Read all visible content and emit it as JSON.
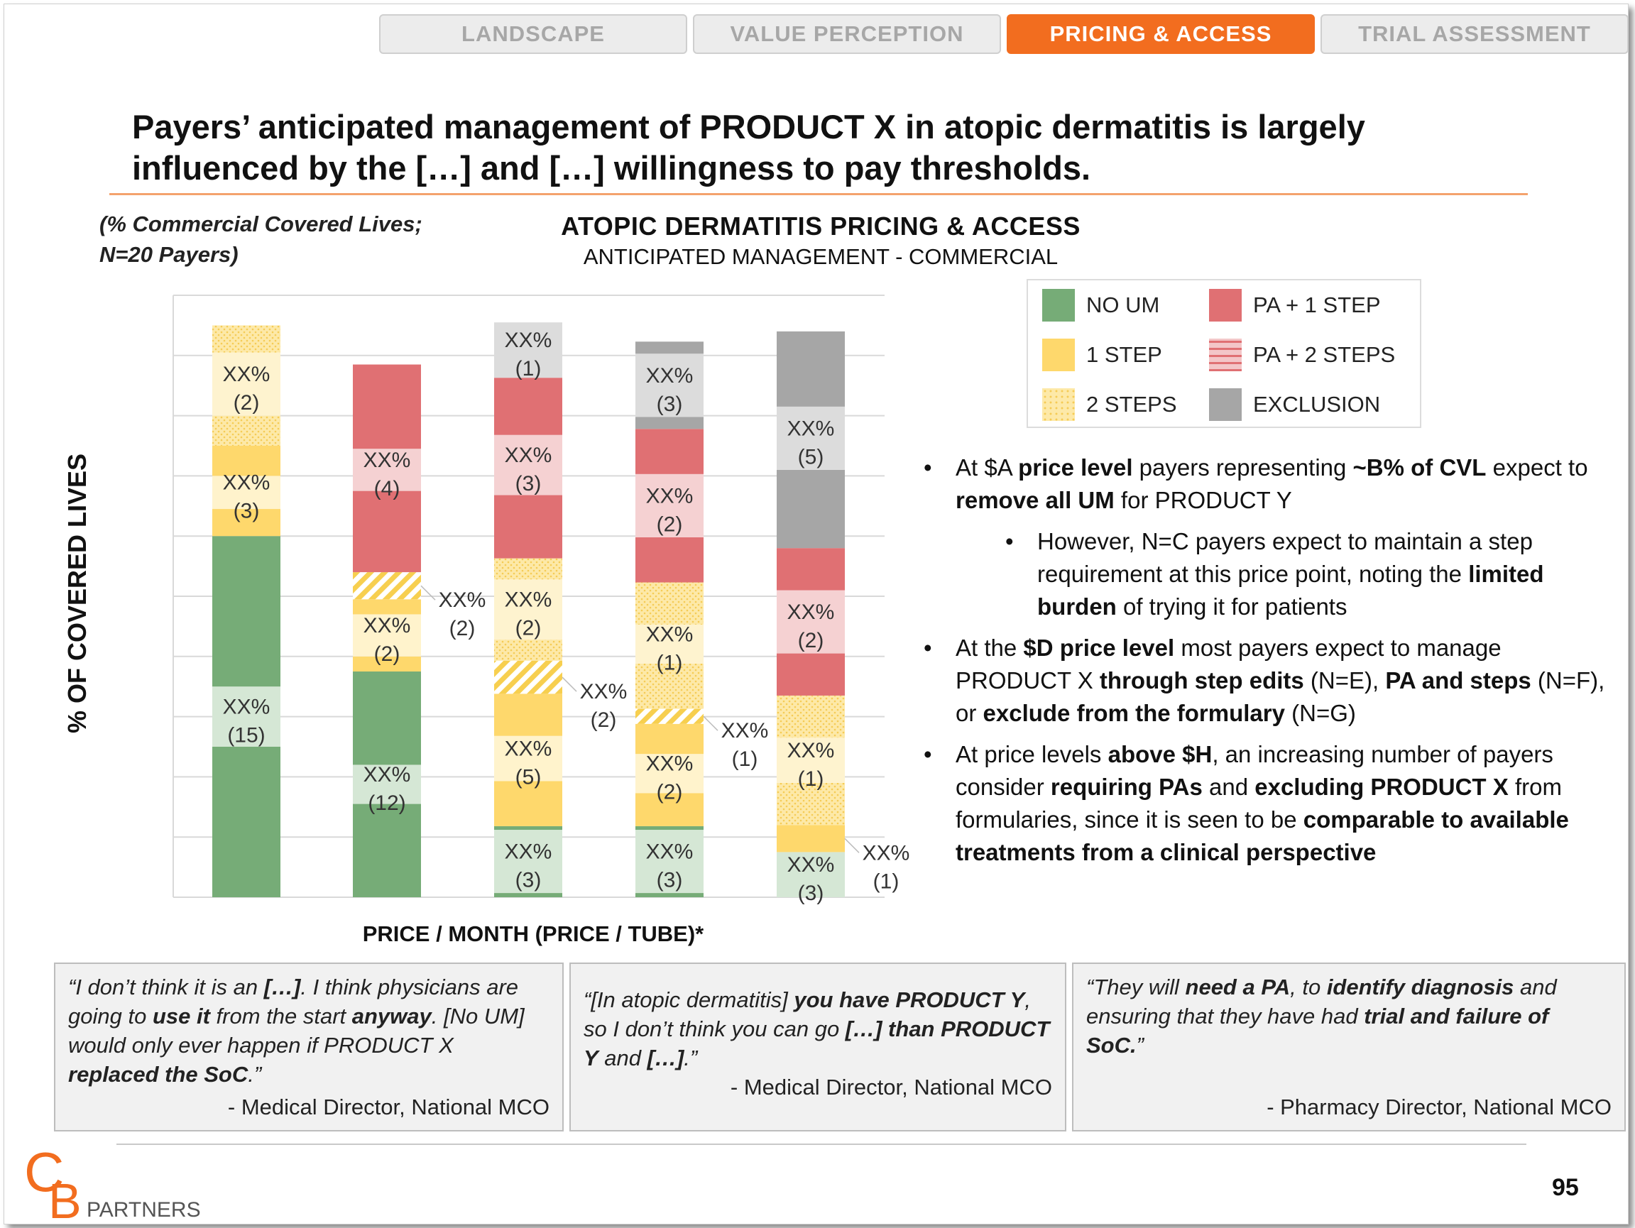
{
  "tabs": [
    {
      "label": "LANDSCAPE",
      "active": false
    },
    {
      "label": "VALUE PERCEPTION",
      "active": false
    },
    {
      "label": "PRICING & ACCESS",
      "active": true
    },
    {
      "label": "TRIAL ASSESSMENT",
      "active": false
    }
  ],
  "headline": {
    "line1": "Payers’ anticipated management of PRODUCT X in atopic dermatitis is largely",
    "line2": "influenced by the […] and […] willingness to pay thresholds."
  },
  "note": {
    "line1": "(% Commercial Covered Lives;",
    "line2": "N=20 Payers)"
  },
  "colors": {
    "no_um": "#76ac77",
    "one_step": "#fed86c",
    "two_steps": "#fde9a8",
    "pa_one_step": "#e07073",
    "pa_two_steps": "#f3c6c8",
    "exclusion": "#a6a6a6",
    "accent": "#f26d1f",
    "rule": "#f4a26d"
  },
  "legend": [
    {
      "key": "no_um",
      "label": "NO UM",
      "pattern": "solid"
    },
    {
      "key": "pa_one_step",
      "label": "PA + 1 STEP",
      "pattern": "solid"
    },
    {
      "key": "one_step",
      "label": "1 STEP",
      "pattern": "solid"
    },
    {
      "key": "pa_two_steps",
      "label": "PA + 2 STEPS",
      "pattern": "stripes"
    },
    {
      "key": "two_steps",
      "label": "2 STEPS",
      "pattern": "dots"
    },
    {
      "key": "exclusion",
      "label": "EXCLUSION",
      "pattern": "solid"
    }
  ],
  "chart_data": {
    "type": "bar",
    "stacked": true,
    "title": "ATOPIC DERMATITIS PRICING & ACCESS",
    "subtitle": "ANTICIPATED MANAGEMENT - COMMERCIAL",
    "xlabel": "PRICE / MONTH (PRICE / TUBE)*",
    "ylabel": "% OF COVERED LIVES",
    "ylim": [
      0,
      100
    ],
    "grid": true,
    "legend_position": "top-right",
    "categories": [
      "",
      "",
      "",
      "",
      ""
    ],
    "bars": [
      {
        "segments": [
          {
            "cat": "no_um",
            "value": 25,
            "shade": "a"
          },
          {
            "cat": "no_um",
            "value": 10,
            "shade": "b",
            "label": "XX%",
            "count": "(15)"
          },
          {
            "cat": "no_um",
            "value": 25,
            "shade": "a"
          },
          {
            "cat": "one_step",
            "value": 4.5,
            "shade": "a"
          },
          {
            "cat": "one_step",
            "value": 5.5,
            "shade": "b",
            "label": "XX%",
            "count": "(3)"
          },
          {
            "cat": "one_step",
            "value": 5,
            "shade": "a"
          },
          {
            "cat": "two_steps",
            "value": 5,
            "shade": "a"
          },
          {
            "cat": "two_steps",
            "value": 10.5,
            "shade": "b",
            "label": "XX%",
            "count": "(2)"
          },
          {
            "cat": "two_steps",
            "value": 4.5,
            "shade": "a"
          }
        ]
      },
      {
        "segments": [
          {
            "cat": "no_um",
            "value": 15.5,
            "shade": "a"
          },
          {
            "cat": "no_um",
            "value": 6.5,
            "shade": "b",
            "label": "XX%",
            "count": "(12)"
          },
          {
            "cat": "no_um",
            "value": 15.5,
            "shade": "a"
          },
          {
            "cat": "one_step",
            "value": 2.5,
            "shade": "a"
          },
          {
            "cat": "one_step",
            "value": 7,
            "shade": "b",
            "label": "XX%",
            "count": "(2)"
          },
          {
            "cat": "one_step",
            "value": 2.5,
            "shade": "a"
          },
          {
            "cat": "two_steps",
            "value": 4.5,
            "shade": "hatch",
            "callout": "XX%",
            "callout_count": "(2)"
          },
          {
            "cat": "pa_one_step",
            "value": 13.5,
            "shade": "a"
          },
          {
            "cat": "pa_one_step",
            "value": 7,
            "shade": "b",
            "label": "XX%",
            "count": "(4)"
          },
          {
            "cat": "pa_one_step",
            "value": 14,
            "shade": "a"
          }
        ]
      },
      {
        "segments": [
          {
            "cat": "no_um",
            "value": 0.7,
            "shade": "a"
          },
          {
            "cat": "no_um",
            "value": 10.5,
            "shade": "b",
            "label": "XX%",
            "count": "(3)"
          },
          {
            "cat": "no_um",
            "value": 0.6,
            "shade": "a"
          },
          {
            "cat": "one_step",
            "value": 7.5,
            "shade": "a"
          },
          {
            "cat": "one_step",
            "value": 7.5,
            "shade": "b",
            "label": "XX%",
            "count": "(5)"
          },
          {
            "cat": "one_step",
            "value": 7,
            "shade": "a"
          },
          {
            "cat": "two_steps",
            "value": 5.5,
            "shade": "hatch",
            "callout": "XX%",
            "callout_count": "(2)"
          },
          {
            "cat": "two_steps",
            "value": 3.5,
            "shade": "a"
          },
          {
            "cat": "two_steps",
            "value": 10,
            "shade": "b",
            "label": "XX%",
            "count": "(2)"
          },
          {
            "cat": "two_steps",
            "value": 3.5,
            "shade": "a"
          },
          {
            "cat": "pa_one_step",
            "value": 10.5,
            "shade": "a"
          },
          {
            "cat": "pa_one_step",
            "value": 10,
            "shade": "b",
            "label": "XX%",
            "count": "(3)"
          },
          {
            "cat": "pa_one_step",
            "value": 9.5,
            "shade": "a"
          },
          {
            "cat": "exclusion",
            "value": 9.2,
            "shade": "b",
            "label": "XX%",
            "count": "(1)"
          }
        ]
      },
      {
        "segments": [
          {
            "cat": "no_um",
            "value": 0.7,
            "shade": "a"
          },
          {
            "cat": "no_um",
            "value": 10.5,
            "shade": "b",
            "label": "XX%",
            "count": "(3)"
          },
          {
            "cat": "no_um",
            "value": 0.6,
            "shade": "a"
          },
          {
            "cat": "one_step",
            "value": 5.5,
            "shade": "a"
          },
          {
            "cat": "one_step",
            "value": 6.5,
            "shade": "b",
            "label": "XX%",
            "count": "(2)"
          },
          {
            "cat": "one_step",
            "value": 5,
            "shade": "a"
          },
          {
            "cat": "two_steps",
            "value": 2.5,
            "shade": "hatch",
            "callout": "XX%",
            "callout_count": "(1)"
          },
          {
            "cat": "two_steps",
            "value": 7.5,
            "shade": "a"
          },
          {
            "cat": "two_steps",
            "value": 6.5,
            "shade": "b",
            "label": "XX%",
            "count": "(1)"
          },
          {
            "cat": "two_steps",
            "value": 7,
            "shade": "a"
          },
          {
            "cat": "pa_one_step",
            "value": 7.5,
            "shade": "a"
          },
          {
            "cat": "pa_one_step",
            "value": 10.5,
            "shade": "b",
            "label": "XX%",
            "count": "(2)"
          },
          {
            "cat": "pa_one_step",
            "value": 7.5,
            "shade": "a"
          },
          {
            "cat": "exclusion",
            "value": 2,
            "shade": "a"
          },
          {
            "cat": "exclusion",
            "value": 10.5,
            "shade": "b",
            "label": "XX%",
            "count": "(3)"
          },
          {
            "cat": "exclusion",
            "value": 2,
            "shade": "a"
          }
        ]
      },
      {
        "segments": [
          {
            "cat": "no_um",
            "value": 7.5,
            "shade": "b",
            "label": "XX%",
            "count": "(3)"
          },
          {
            "cat": "one_step",
            "value": 4.5,
            "shade": "a",
            "callout": "XX%",
            "callout_count": "(1)"
          },
          {
            "cat": "two_steps",
            "value": 7,
            "shade": "a"
          },
          {
            "cat": "two_steps",
            "value": 7.5,
            "shade": "b",
            "label": "XX%",
            "count": "(1)"
          },
          {
            "cat": "two_steps",
            "value": 7,
            "shade": "a"
          },
          {
            "cat": "pa_one_step",
            "value": 7,
            "shade": "a"
          },
          {
            "cat": "pa_one_step",
            "value": 10.5,
            "shade": "b",
            "label": "XX%",
            "count": "(2)"
          },
          {
            "cat": "pa_one_step",
            "value": 7,
            "shade": "a"
          },
          {
            "cat": "exclusion",
            "value": 13,
            "shade": "a"
          },
          {
            "cat": "exclusion",
            "value": 10.5,
            "shade": "b",
            "label": "XX%",
            "count": "(5)"
          },
          {
            "cat": "exclusion",
            "value": 12.5,
            "shade": "a"
          }
        ]
      }
    ]
  },
  "bullets": [
    {
      "level": 1,
      "runs": [
        {
          "t": "At $A ",
          "b": false
        },
        {
          "t": "price level",
          "b": true
        },
        {
          "t": " payers representing ",
          "b": false
        },
        {
          "t": "~B% of CVL",
          "b": true
        },
        {
          "t": " expect to ",
          "b": false
        },
        {
          "t": "remove all UM",
          "b": true
        },
        {
          "t": " for PRODUCT Y",
          "b": false
        }
      ]
    },
    {
      "level": 2,
      "runs": [
        {
          "t": "However, N=C payers expect to maintain a step requirement at this price point, noting the ",
          "b": false
        },
        {
          "t": "limited burden",
          "b": true
        },
        {
          "t": " of trying it for patients",
          "b": false
        }
      ]
    },
    {
      "level": 1,
      "runs": [
        {
          "t": "At the ",
          "b": false
        },
        {
          "t": "$D price level",
          "b": true
        },
        {
          "t": " most payers expect to manage PRODUCT X ",
          "b": false
        },
        {
          "t": "through step edits",
          "b": true
        },
        {
          "t": " (N=E), ",
          "b": false
        },
        {
          "t": "PA and steps",
          "b": true
        },
        {
          "t": " (N=F), or ",
          "b": false
        },
        {
          "t": "exclude from the formulary",
          "b": true
        },
        {
          "t": " (N=G)",
          "b": false
        }
      ]
    },
    {
      "level": 1,
      "runs": [
        {
          "t": "At price levels ",
          "b": false
        },
        {
          "t": "above $H",
          "b": true
        },
        {
          "t": ", an increasing number of payers consider ",
          "b": false
        },
        {
          "t": "requiring PAs",
          "b": true
        },
        {
          "t": " and ",
          "b": false
        },
        {
          "t": "excluding PRODUCT X",
          "b": true
        },
        {
          "t": " from formularies, since it is seen to be ",
          "b": false
        },
        {
          "t": "comparable to available treatments from a clinical perspective",
          "b": true
        }
      ]
    }
  ],
  "quotes": [
    {
      "runs": [
        {
          "t": "“I don’t think it is an ",
          "b": false
        },
        {
          "t": "[…]",
          "b": true
        },
        {
          "t": ". I think physicians are going to ",
          "b": false
        },
        {
          "t": "use it",
          "b": true
        },
        {
          "t": " from the start ",
          "b": false
        },
        {
          "t": "anyway",
          "b": true
        },
        {
          "t": ". [No UM] would only ever happen if PRODUCT X ",
          "b": false
        },
        {
          "t": "replaced the SoC",
          "b": true
        },
        {
          "t": ".”",
          "b": false
        }
      ],
      "attribution": "- Medical Director, National MCO"
    },
    {
      "runs": [
        {
          "t": "“[In atopic dermatitis] ",
          "b": false
        },
        {
          "t": "you have PRODUCT Y",
          "b": true
        },
        {
          "t": ", so I don’t think you can go ",
          "b": false
        },
        {
          "t": "[…] than PRODUCT Y",
          "b": true
        },
        {
          "t": " and ",
          "b": false
        },
        {
          "t": "[…]",
          "b": true
        },
        {
          "t": ".”",
          "b": false
        }
      ],
      "attribution": "- Medical Director, National MCO"
    },
    {
      "runs": [
        {
          "t": "“They will ",
          "b": false
        },
        {
          "t": "need a PA",
          "b": true
        },
        {
          "t": ", to ",
          "b": false
        },
        {
          "t": "identify diagnosis",
          "b": true
        },
        {
          "t": " and ensuring that they have had ",
          "b": false
        },
        {
          "t": "trial and failure of SoC.",
          "b": true
        },
        {
          "t": "”",
          "b": false
        }
      ],
      "attribution": "- Pharmacy Director, National MCO"
    }
  ],
  "logo": {
    "letters": "CB",
    "text": "PARTNERS"
  },
  "page_number": "95"
}
